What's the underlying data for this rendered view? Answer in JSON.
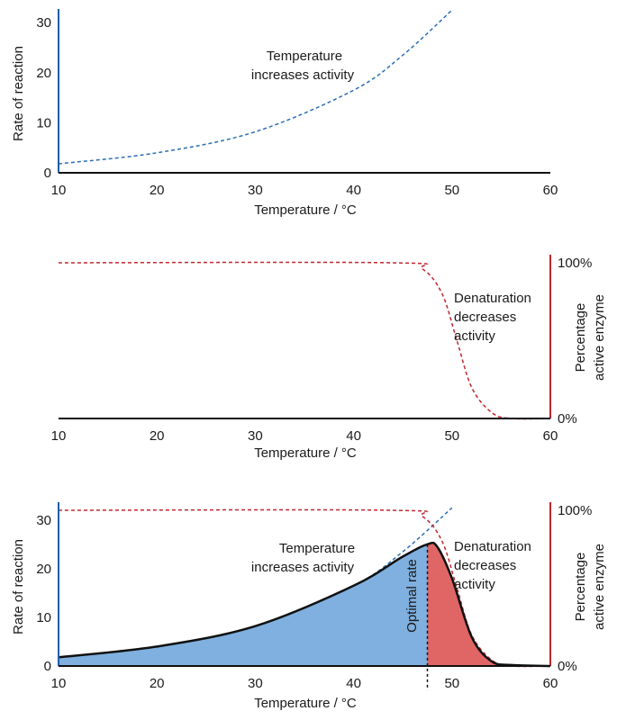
{
  "colors": {
    "rate_axis": "#1f5fa8",
    "rate_curve": "#2a6db5",
    "denat_axis": "#c0262d",
    "denat_curve": "#c0262d",
    "area_blue": "#7fb0df",
    "area_red": "#e06666",
    "axis": "#111111"
  },
  "chart_data": [
    {
      "type": "line",
      "xlabel": "Temperature / °C",
      "ylabel": "Rate of reaction",
      "xlim": [
        10,
        60
      ],
      "ylim": [
        0,
        32
      ],
      "x_ticks": [
        "10",
        "20",
        "30",
        "40",
        "50",
        "60"
      ],
      "y_ticks": [
        "0",
        "10",
        "20",
        "30"
      ],
      "series": [
        {
          "x": [
            10,
            20,
            30,
            40,
            45,
            50
          ],
          "y": [
            1.8,
            4.0,
            8.2,
            16.5,
            23.5,
            32.5
          ]
        }
      ],
      "annotations": [
        "Temperature",
        "increases activity"
      ]
    },
    {
      "type": "line",
      "xlabel": "Temperature / °C",
      "ylabel": "Percentage active enzyme",
      "ylabel_lines": [
        "Percentage",
        "active enzyme"
      ],
      "xlim": [
        10,
        60
      ],
      "ylim": [
        0,
        100
      ],
      "x_ticks": [
        "10",
        "20",
        "30",
        "40",
        "50",
        "60"
      ],
      "y_ticks": [
        "0%",
        "100%"
      ],
      "series": [
        {
          "x": [
            10,
            44,
            47,
            49,
            50.5,
            52,
            54,
            56,
            60
          ],
          "y": [
            100,
            100,
            96,
            80,
            50,
            20,
            4,
            0,
            0
          ]
        }
      ],
      "annotations": [
        "Denaturation",
        "decreases",
        "activity"
      ]
    },
    {
      "type": "area",
      "xlabel": "Temperature / °C",
      "ylabel": "Rate of reaction",
      "y2label": "Percentage active enzyme",
      "y2label_lines": [
        "Percentage",
        "active enzyme"
      ],
      "xlim": [
        10,
        60
      ],
      "ylim": [
        0,
        32
      ],
      "y2lim": [
        0,
        100
      ],
      "x_ticks": [
        "10",
        "20",
        "30",
        "40",
        "50",
        "60"
      ],
      "y_ticks": [
        "0",
        "10",
        "20",
        "30"
      ],
      "y2_ticks": [
        "0%",
        "100%"
      ],
      "optimal_x": 47.5,
      "series": [
        {
          "x": [
            10,
            20,
            30,
            40,
            45,
            47.5,
            48.5,
            50,
            52,
            54,
            56,
            60
          ],
          "y": [
            1.8,
            4.0,
            8.2,
            16.5,
            22.5,
            25,
            24.5,
            18,
            6,
            1,
            0.2,
            0
          ]
        }
      ],
      "annotations": [
        "Temperature",
        "increases activity",
        "Denaturation",
        "decreases",
        "activity",
        "Optimal rate"
      ]
    }
  ]
}
